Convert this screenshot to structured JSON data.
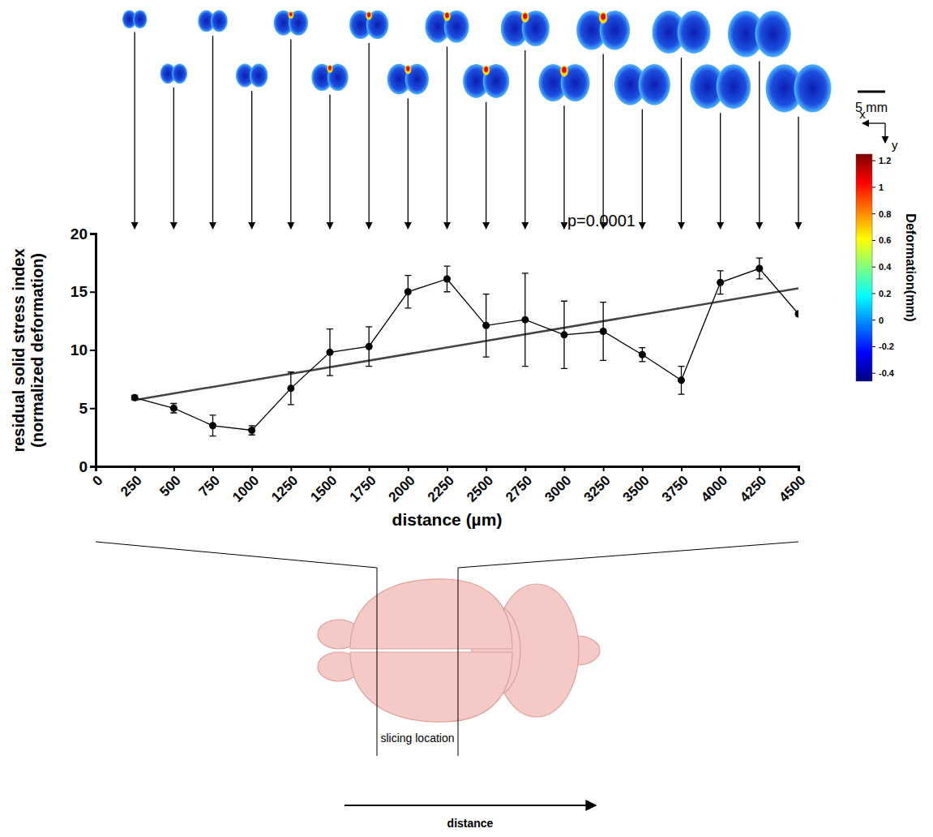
{
  "chart_data": {
    "type": "line",
    "x": [
      250,
      500,
      750,
      1000,
      1250,
      1500,
      1750,
      2000,
      2250,
      2500,
      2750,
      3000,
      3250,
      3500,
      3750,
      4000,
      4250,
      4500
    ],
    "values": [
      5.9,
      5.0,
      3.5,
      3.1,
      6.7,
      9.8,
      10.3,
      15.0,
      16.1,
      12.1,
      12.6,
      11.3,
      11.6,
      9.6,
      7.4,
      15.8,
      17.0,
      13.1
    ],
    "errors": [
      0.2,
      0.4,
      0.9,
      0.4,
      1.4,
      2.0,
      1.7,
      1.4,
      1.1,
      2.7,
      4.0,
      2.9,
      2.5,
      0.6,
      1.2,
      1.0,
      0.9,
      0
    ],
    "color": "#000000",
    "marker": "circle",
    "trend": {
      "x": [
        250,
        4500
      ],
      "values": [
        5.7,
        15.3
      ],
      "color": "#444444"
    },
    "annotation": "p=0.0001",
    "x_label": "distance (µm)",
    "y_label": [
      "residual solid stress index",
      "(normalized deformation)"
    ],
    "xlim": [
      0,
      4500
    ],
    "xticks": [
      0,
      250,
      500,
      750,
      1000,
      1250,
      1500,
      1750,
      2000,
      2250,
      2500,
      2750,
      3000,
      3250,
      3500,
      3750,
      4000,
      4250,
      4500
    ],
    "ylim": [
      0,
      20
    ],
    "yticks": [
      0,
      5,
      10,
      15,
      20
    ],
    "grid": false,
    "colorbar": {
      "label": "Deformation(mm)",
      "range": [
        -0.46,
        1.25
      ],
      "ticks": [
        1.2,
        1,
        0.8,
        0.6,
        0.4,
        0.2,
        0,
        -0.2,
        -0.4
      ]
    }
  },
  "figure": {
    "scale_bar": "5 mm",
    "axis_x": "x",
    "axis_y": "y",
    "slice_label": "slicing location",
    "distance_label": "distance"
  }
}
